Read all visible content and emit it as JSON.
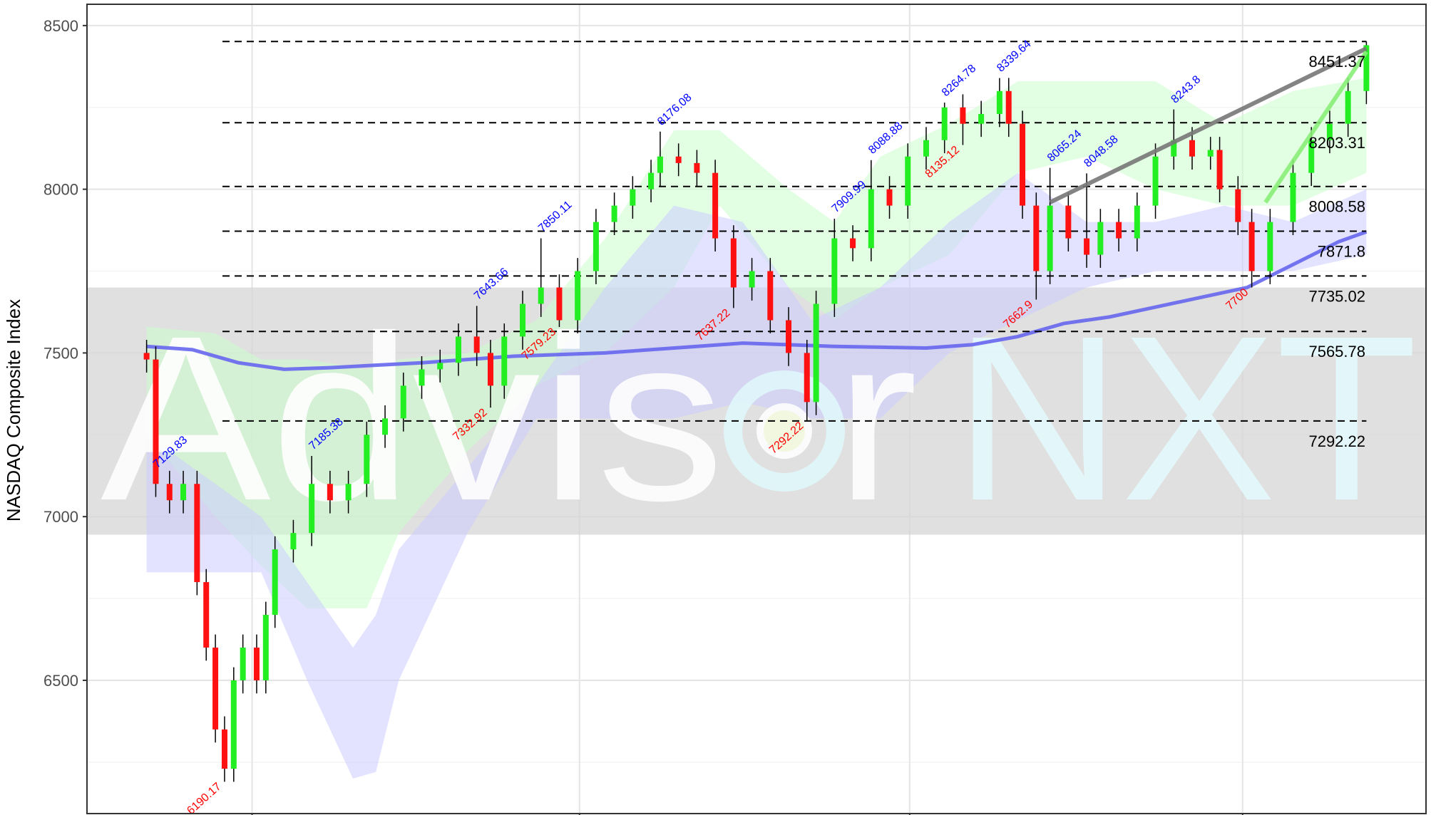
{
  "chart_data": {
    "type": "candlestick",
    "ylabel": "NASDAQ Composite Index",
    "watermark": [
      "Advis",
      "r",
      "NXT"
    ],
    "xlim": [
      -13,
      279
    ],
    "xticks": [
      23,
      94.4,
      166.4,
      239
    ],
    "ylim": [
      6093,
      8565
    ],
    "yticks": [
      6500,
      7000,
      7500,
      8000,
      8500
    ],
    "yminor": [
      6250,
      6750,
      7250,
      7750,
      8250
    ],
    "grid": true,
    "band": [
      6945,
      7700
    ],
    "up_color": "#22ee22",
    "down_color": "#ff1111",
    "x": [
      0,
      2,
      5,
      8,
      11,
      13,
      15,
      17,
      19,
      21,
      24,
      26,
      28,
      32,
      36,
      40,
      44,
      48,
      52,
      56,
      60,
      64,
      68,
      72,
      75,
      78,
      82,
      86,
      90,
      94,
      98,
      102,
      106,
      110,
      112,
      116,
      120,
      124,
      128,
      132,
      136,
      140,
      144,
      146,
      150,
      154,
      158,
      162,
      166,
      170,
      174,
      178,
      182,
      186,
      188,
      191,
      194,
      197,
      201,
      205,
      208,
      212,
      216,
      220,
      224,
      228,
      232,
      234,
      238,
      241,
      245,
      250,
      254,
      258,
      262,
      266
    ],
    "open": [
      7500,
      7480,
      7100,
      7050,
      7100,
      6800,
      6600,
      6350,
      6230,
      6500,
      6600,
      6500,
      6700,
      6900,
      6950,
      7100,
      7050,
      7100,
      7250,
      7300,
      7400,
      7450,
      7470,
      7550,
      7500,
      7400,
      7550,
      7650,
      7700,
      7600,
      7750,
      7900,
      7950,
      8000,
      8050,
      8100,
      8080,
      8050,
      7850,
      7700,
      7750,
      7600,
      7500,
      7350,
      7650,
      7850,
      7820,
      8000,
      7950,
      8100,
      8150,
      8250,
      8200,
      8230,
      8300,
      8200,
      7950,
      7750,
      7950,
      7850,
      7800,
      7900,
      7850,
      7950,
      8100,
      8150,
      8100,
      8120,
      8000,
      7900,
      7750,
      7900,
      8050,
      8150,
      8200,
      8300
    ],
    "high": [
      7540,
      7520,
      7140,
      7140,
      7140,
      6840,
      6640,
      6390,
      6540,
      6640,
      6640,
      6740,
      6940,
      6990,
      7185.38,
      7140,
      7140,
      7290,
      7340,
      7440,
      7490,
      7510,
      7590,
      7643.66,
      7540,
      7590,
      7690,
      7850.11,
      7740,
      7790,
      7940,
      7990,
      8040,
      8090,
      8176.08,
      8140,
      8120,
      8090,
      7890,
      7790,
      7790,
      7640,
      7540,
      7690,
      7909.99,
      7890,
      8088.88,
      8040,
      8140,
      8190,
      8264.78,
      8290,
      8270,
      8339.64,
      8340,
      8240,
      7990,
      8065.24,
      7990,
      8048.58,
      7940,
      7940,
      7990,
      8140,
      8243.8,
      8190,
      8160,
      8160,
      8040,
      7940,
      7940,
      8090,
      8190,
      8240,
      8340,
      8451.37
    ],
    "low": [
      7440,
      7060,
      7010,
      7010,
      6760,
      6560,
      6310,
      6190.17,
      6190,
      6460,
      6460,
      6460,
      6660,
      6860,
      6910,
      7010,
      7010,
      7060,
      7210,
      7260,
      7360,
      7410,
      7430,
      7460,
      7332.92,
      7360,
      7510,
      7610,
      7579.23,
      7560,
      7710,
      7860,
      7910,
      7960,
      8010,
      8040,
      8010,
      7810,
      7637.22,
      7660,
      7560,
      7460,
      7292.22,
      7310,
      7610,
      7780,
      7780,
      7910,
      7910,
      8060,
      8110,
      8135.12,
      8160,
      8190,
      8160,
      7910,
      7662.9,
      7710,
      7810,
      7760,
      7760,
      7810,
      7810,
      7910,
      8060,
      8060,
      8060,
      7960,
      7860,
      7700,
      7710,
      7860,
      8010,
      8110,
      8160,
      8260
    ],
    "close": [
      7480,
      7100,
      7050,
      7100,
      6800,
      6600,
      6350,
      6230,
      6500,
      6600,
      6500,
      6700,
      6900,
      6950,
      7100,
      7050,
      7100,
      7250,
      7300,
      7400,
      7450,
      7470,
      7550,
      7500,
      7400,
      7550,
      7650,
      7700,
      7600,
      7750,
      7900,
      7950,
      8000,
      8050,
      8100,
      8080,
      8050,
      7850,
      7700,
      7750,
      7600,
      7500,
      7350,
      7650,
      7850,
      7820,
      8000,
      7950,
      8100,
      8150,
      8250,
      8200,
      8230,
      8300,
      8200,
      7950,
      7750,
      7950,
      7850,
      7800,
      7900,
      7850,
      7950,
      8100,
      8150,
      8100,
      8120,
      8000,
      7900,
      7750,
      7900,
      8050,
      8150,
      8200,
      8300,
      8440
    ],
    "clouds": [
      {
        "color": "#ccffcc",
        "x": [
          0,
          15,
          25,
          35,
          48,
          55,
          70,
          85,
          100,
          115,
          125,
          140,
          150,
          160,
          175,
          190,
          205,
          220,
          235,
          250,
          266
        ],
        "upper": [
          7580,
          7560,
          7480,
          7480,
          7450,
          7480,
          7500,
          7600,
          7850,
          8180,
          8180,
          8000,
          7900,
          8100,
          8200,
          8330,
          8330,
          8330,
          8200,
          8300,
          8340
        ],
        "lower": [
          7250,
          7000,
          6850,
          6720,
          6720,
          6950,
          7200,
          7400,
          7500,
          7700,
          7950,
          7700,
          7600,
          7700,
          7800,
          8050,
          8100,
          8000,
          7950,
          7950,
          8050
        ]
      },
      {
        "color": "#ccccff",
        "x": [
          0,
          15,
          25,
          35,
          45,
          50,
          55,
          70,
          85,
          100,
          115,
          130,
          145,
          160,
          175,
          190,
          205,
          220,
          235,
          250,
          266
        ],
        "upper": [
          7250,
          7100,
          7000,
          6800,
          6600,
          6700,
          6900,
          7150,
          7400,
          7700,
          7950,
          7900,
          7600,
          7700,
          7900,
          8050,
          7900,
          7900,
          7950,
          7900,
          8000
        ],
        "lower": [
          6830,
          6830,
          6830,
          6500,
          6200,
          6220,
          6500,
          6950,
          7300,
          7300,
          7300,
          7350,
          7300,
          7300,
          7500,
          7600,
          7700,
          7750,
          7750,
          7750,
          7800
        ]
      }
    ],
    "moving_average": {
      "color": "#6666ee",
      "x": [
        0,
        10,
        20,
        30,
        40,
        60,
        80,
        100,
        120,
        130,
        140,
        150,
        170,
        180,
        190,
        200,
        210,
        220,
        230,
        240,
        250,
        260,
        266
      ],
      "values": [
        7520,
        7510,
        7470,
        7450,
        7455,
        7470,
        7490,
        7500,
        7520,
        7530,
        7525,
        7520,
        7515,
        7525,
        7550,
        7590,
        7610,
        7640,
        7670,
        7700,
        7770,
        7840,
        7870
      ]
    },
    "levels": [
      8451.37,
      8203.31,
      8008.58,
      7871.8,
      7735.02,
      7565.78,
      7292.22
    ],
    "trendlines": [
      {
        "color": "#777777",
        "x": [
          197,
          266
        ],
        "values": [
          7960,
          8430
        ]
      },
      {
        "color": "#88ee77",
        "x": [
          244,
          266
        ],
        "values": [
          7960,
          8420
        ]
      }
    ],
    "annotations": [
      {
        "label": "7129.83",
        "x": 2,
        "y": 7130,
        "color": "#0000ff"
      },
      {
        "label": "7185.38",
        "x": 36,
        "y": 7185.38,
        "color": "#0000ff"
      },
      {
        "label": "7643.66",
        "x": 72,
        "y": 7643.66,
        "color": "#0000ff"
      },
      {
        "label": "7850.11",
        "x": 86,
        "y": 7850.11,
        "color": "#0000ff"
      },
      {
        "label": "8176.08",
        "x": 112,
        "y": 8176.08,
        "color": "#0000ff"
      },
      {
        "label": "7909.99",
        "x": 150,
        "y": 7909.99,
        "color": "#0000ff"
      },
      {
        "label": "8088.88",
        "x": 158,
        "y": 8088.88,
        "color": "#0000ff"
      },
      {
        "label": "8264.78",
        "x": 174,
        "y": 8264.78,
        "color": "#0000ff"
      },
      {
        "label": "8339.64",
        "x": 186,
        "y": 8339.64,
        "color": "#0000ff"
      },
      {
        "label": "8065.24",
        "x": 197,
        "y": 8065.24,
        "color": "#0000ff"
      },
      {
        "label": "8048.58",
        "x": 205,
        "y": 8048.58,
        "color": "#0000ff"
      },
      {
        "label": "8243.8",
        "x": 224,
        "y": 8243.8,
        "color": "#0000ff"
      },
      {
        "label": "6190.17",
        "x": 17,
        "y": 6190.17,
        "color": "#ff0000"
      },
      {
        "label": "7332.92",
        "x": 75,
        "y": 7332.92,
        "color": "#ff0000"
      },
      {
        "label": "7579.23",
        "x": 90,
        "y": 7579.23,
        "color": "#ff0000"
      },
      {
        "label": "7637.22",
        "x": 128,
        "y": 7637.22,
        "color": "#ff0000"
      },
      {
        "label": "7292.22",
        "x": 144,
        "y": 7292.22,
        "color": "#ff0000"
      },
      {
        "label": "8135.12",
        "x": 178,
        "y": 8135.12,
        "color": "#ff0000"
      },
      {
        "label": "7662.9",
        "x": 194,
        "y": 7662.9,
        "color": "#ff0000"
      },
      {
        "label": "7700",
        "x": 241,
        "y": 7700,
        "color": "#ff0000"
      }
    ]
  }
}
